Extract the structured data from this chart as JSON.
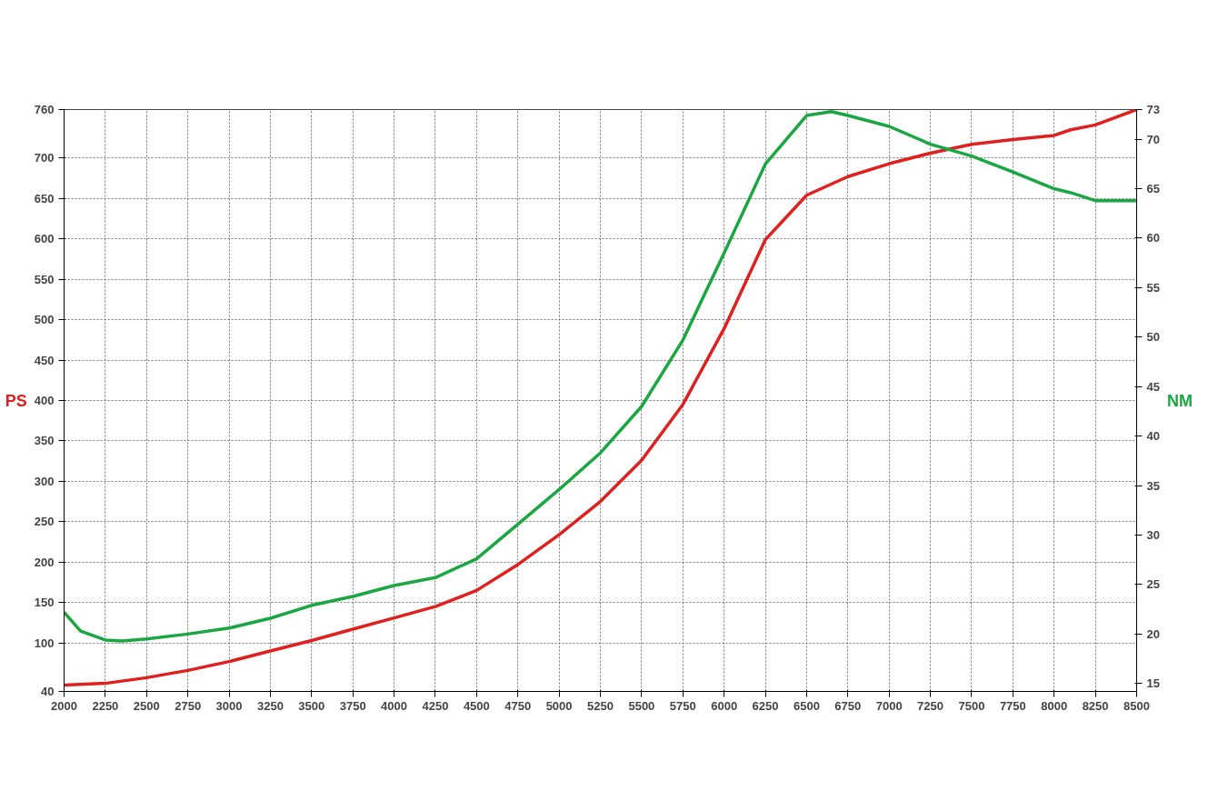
{
  "chart_data": {
    "type": "line",
    "ylabel": "PS",
    "y2label": "NM",
    "x": [
      2000,
      2250,
      2500,
      2750,
      3000,
      3250,
      3500,
      3750,
      4000,
      4250,
      4500,
      4750,
      5000,
      5250,
      5500,
      5750,
      6000,
      6250,
      6500,
      6750,
      7000,
      7250,
      7500,
      7750,
      8000,
      8100,
      8250,
      8500
    ],
    "series": [
      {
        "color": "#e0201f",
        "values": [
          48,
          50,
          57,
          66,
          77,
          90,
          103,
          117,
          131,
          145,
          165,
          197,
          234,
          275,
          326,
          395,
          489,
          599,
          654,
          677,
          693,
          706,
          717,
          723,
          728,
          735,
          741,
          760
        ]
      },
      {
        "color": "#1aa640",
        "axis": "y2",
        "x": [
          2000,
          2100,
          2250,
          2350,
          2500,
          2750,
          3000,
          3250,
          3500,
          3750,
          4000,
          4250,
          4500,
          4750,
          5000,
          5250,
          5500,
          5750,
          6000,
          6250,
          6500,
          6650,
          6750,
          7000,
          7250,
          7500,
          7750,
          8000,
          8100,
          8250,
          8500
        ],
        "values": [
          22.2,
          20.3,
          19.4,
          19.3,
          19.5,
          20.0,
          20.6,
          21.6,
          22.9,
          23.8,
          24.9,
          25.7,
          27.6,
          31.1,
          34.6,
          38.3,
          43.0,
          49.7,
          58.5,
          67.5,
          72.4,
          72.8,
          72.4,
          71.3,
          69.5,
          68.3,
          66.7,
          65.0,
          64.6,
          63.8,
          63.8
        ]
      }
    ],
    "xlim": [
      2000,
      8500
    ],
    "xticks": [
      2000,
      2250,
      2500,
      2750,
      3000,
      3250,
      3500,
      3750,
      4000,
      4250,
      4500,
      4750,
      5000,
      5250,
      5500,
      5750,
      6000,
      6250,
      6500,
      6750,
      7000,
      7250,
      7500,
      7750,
      8000,
      8250,
      8500
    ],
    "ylim": [
      40,
      760
    ],
    "yticks": [
      40,
      100,
      150,
      200,
      250,
      300,
      350,
      400,
      450,
      500,
      550,
      600,
      650,
      700,
      760
    ],
    "y2lim": [
      14.2,
      73
    ],
    "y2ticks": [
      15,
      20,
      25,
      30,
      35,
      40,
      45,
      50,
      55,
      60,
      65,
      70,
      73
    ],
    "grid": true,
    "marker": "none",
    "line_style": "solid"
  }
}
